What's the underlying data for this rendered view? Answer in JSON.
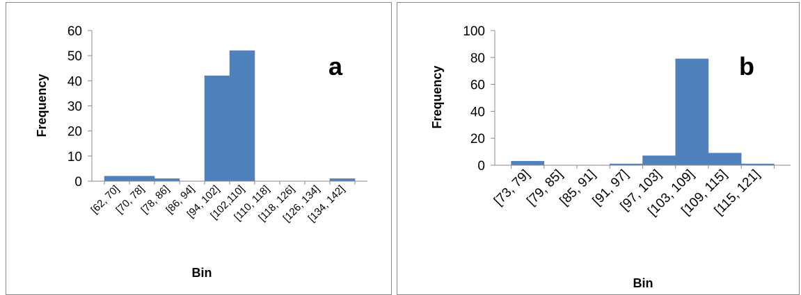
{
  "chart_data": [
    {
      "type": "bar",
      "panel_label": "a",
      "categories": [
        "[62, 70]",
        "[70, 78]",
        "[78, 86]",
        "[86, 94]",
        "[94, 102]",
        "[102,110]",
        "[110, 118]",
        "[118, 126]",
        "[126, 134]",
        "[134, 142]"
      ],
      "values": [
        2,
        2,
        1,
        0,
        42,
        52,
        0,
        0,
        0,
        1
      ],
      "xlabel": "Bin",
      "ylabel": "Frequency",
      "ylim": [
        0,
        60
      ],
      "yticks": [
        "0",
        "10",
        "20",
        "30",
        "40",
        "50",
        "60"
      ],
      "grid": false,
      "bar_color": "#4f81bd"
    },
    {
      "type": "bar",
      "panel_label": "b",
      "categories": [
        "[73, 79]",
        "[79, 85]",
        "[85, 91]",
        "[91, 97]",
        "[97, 103]",
        "[103, 109]",
        "[109, 115]",
        "[115, 121]"
      ],
      "values": [
        3,
        0,
        0,
        1,
        7,
        79,
        9,
        1
      ],
      "xlabel": "Bin",
      "ylabel": "Frequency",
      "ylim": [
        0,
        100
      ],
      "yticks": [
        "0",
        "20",
        "40",
        "60",
        "80",
        "100"
      ],
      "grid": false,
      "bar_color": "#4f81bd"
    }
  ]
}
